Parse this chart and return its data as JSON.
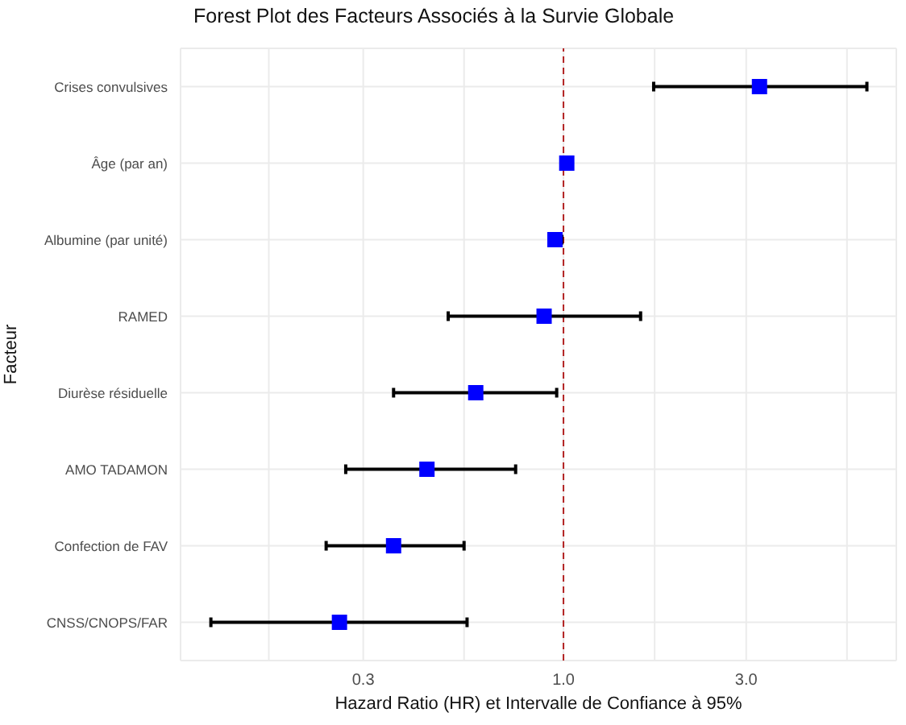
{
  "chart_data": {
    "type": "scatter",
    "orientation": "horizontal",
    "title": "Forest Plot des Facteurs Associés à la Survie Globale",
    "xlabel": "Hazard Ratio (HR) et Intervalle de Confiance à 95%",
    "ylabel": "Facteur",
    "categories": [
      "Crises convulsives",
      "Âge (par an)",
      "Albumine (par unité)",
      "RAMED",
      "Diurèse résiduelle",
      "AMO TADAMON",
      "Confection de FAV",
      "CNSS/CNOPS/FAR"
    ],
    "series": [
      {
        "color": "#0000ff",
        "values": [
          3.25,
          1.02,
          0.95,
          0.89,
          0.59,
          0.44,
          0.36,
          0.26
        ],
        "errors": [
          [
            1.72,
            6.2
          ],
          null,
          [
            0.92,
            0.99
          ],
          [
            0.5,
            1.59
          ],
          [
            0.36,
            0.96
          ],
          [
            0.27,
            0.75
          ],
          [
            0.24,
            0.55
          ],
          [
            0.12,
            0.56
          ]
        ]
      }
    ],
    "log": "x",
    "xlim": [
      0.1,
      7.4
    ],
    "xticks": [
      {
        "value": 0.17,
        "label": null
      },
      0.3,
      {
        "value": 0.55,
        "label": null
      },
      {
        "value": 1,
        "label": "1.0"
      },
      {
        "value": 1.73,
        "label": null
      },
      {
        "value": 3,
        "label": "3.0"
      },
      {
        "value": 5.5,
        "label": null
      }
    ],
    "ref_lines": [
      {
        "axis": "x",
        "value": 1,
        "color": "#b22222",
        "line_style": "dashed"
      }
    ],
    "marker": "square",
    "grid": true
  }
}
